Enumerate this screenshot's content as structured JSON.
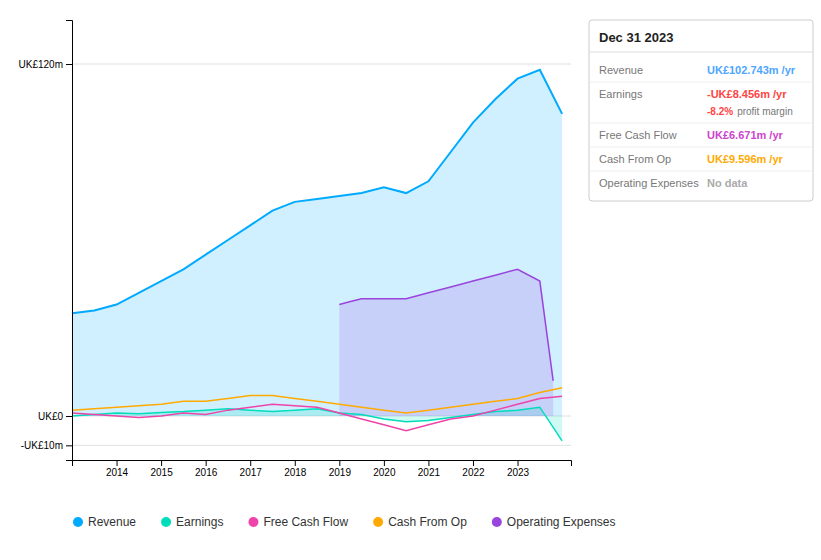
{
  "chart_data": {
    "type": "area",
    "xlim": [
      2013.0,
      2024.2
    ],
    "xticks": [
      2014,
      2015,
      2016,
      2017,
      2018,
      2019,
      2020,
      2021,
      2022,
      2023
    ],
    "ylim": [
      -15,
      135
    ],
    "yticks": [
      {
        "value": -10,
        "label": "-UK£10m"
      },
      {
        "value": 0,
        "label": "UK£0"
      },
      {
        "value": 120,
        "label": "UK£120m"
      }
    ],
    "grid": true,
    "legend": "bottom",
    "series": [
      {
        "name": "Revenue",
        "type": "area",
        "color": "#00aaff",
        "x": [
          2013.0,
          2013.5,
          2014.0,
          2014.5,
          2015.0,
          2015.5,
          2016.0,
          2016.5,
          2017.0,
          2017.5,
          2018.0,
          2018.5,
          2019.0,
          2019.5,
          2020.0,
          2020.5,
          2021.0,
          2021.5,
          2022.0,
          2022.5,
          2023.0,
          2023.5,
          2024.0
        ],
        "values": [
          35,
          36,
          38,
          42,
          46,
          50,
          55,
          60,
          65,
          70,
          73,
          74,
          75,
          76,
          78,
          76,
          80,
          90,
          100,
          108,
          115,
          118,
          103
        ]
      },
      {
        "name": "Earnings",
        "type": "area",
        "color": "#00ddbb",
        "x": [
          2013.0,
          2013.5,
          2014.0,
          2014.5,
          2015.0,
          2015.5,
          2016.0,
          2016.5,
          2017.0,
          2017.5,
          2018.0,
          2018.5,
          2019.0,
          2019.5,
          2020.0,
          2020.5,
          2021.0,
          2021.5,
          2022.0,
          2022.5,
          2023.0,
          2023.5,
          2024.0
        ],
        "values": [
          0,
          0.5,
          1,
          0.8,
          1.2,
          1.5,
          2,
          2.5,
          2,
          1.5,
          2,
          2.5,
          1,
          0.5,
          -1,
          -2,
          -1.5,
          -0.5,
          0.5,
          1.5,
          2,
          3,
          -8.5
        ]
      },
      {
        "name": "Free Cash Flow",
        "type": "line",
        "color": "#ee44aa",
        "x": [
          2013.0,
          2013.5,
          2014.0,
          2014.5,
          2015.0,
          2015.5,
          2016.0,
          2016.5,
          2017.0,
          2017.5,
          2018.0,
          2018.5,
          2019.0,
          2019.5,
          2020.0,
          2020.5,
          2021.0,
          2021.5,
          2022.0,
          2022.5,
          2023.0,
          2023.5,
          2024.0
        ],
        "values": [
          1,
          0.5,
          0,
          -0.5,
          0,
          1,
          0.5,
          2,
          3,
          4,
          3.5,
          3,
          1,
          -1,
          -3,
          -5,
          -3,
          -1,
          0,
          2,
          4,
          6,
          6.7
        ]
      },
      {
        "name": "Cash From Op",
        "type": "line",
        "color": "#ffaa00",
        "x": [
          2013.0,
          2013.5,
          2014.0,
          2014.5,
          2015.0,
          2015.5,
          2016.0,
          2016.5,
          2017.0,
          2017.5,
          2018.0,
          2018.5,
          2019.0,
          2019.5,
          2020.0,
          2020.5,
          2021.0,
          2021.5,
          2022.0,
          2022.5,
          2023.0,
          2023.5,
          2024.0
        ],
        "values": [
          2,
          2.5,
          3,
          3.5,
          4,
          5,
          5,
          6,
          7,
          7,
          6,
          5,
          4,
          3,
          2,
          1,
          2,
          3,
          4,
          5,
          6,
          8,
          9.6
        ]
      },
      {
        "name": "Operating Expenses",
        "type": "area",
        "color": "#9944dd",
        "x": [
          2019.0,
          2019.25,
          2019.5,
          2020.0,
          2020.5,
          2021.0,
          2021.5,
          2022.0,
          2022.5,
          2023.0,
          2023.5,
          2023.8
        ],
        "values": [
          38,
          39,
          40,
          40,
          40,
          42,
          44,
          46,
          48,
          50,
          46,
          12
        ]
      }
    ],
    "info_box": {
      "title": "Dec 31 2023",
      "rows": [
        {
          "label": "Revenue",
          "value": "UK£102.743m /yr",
          "color": "#4da6ff"
        },
        {
          "label": "Earnings",
          "value": "-UK£8.456m /yr",
          "color": "#ff4444",
          "extra": "-8.2%",
          "extra_color": "#ff4444",
          "extra_label": "profit margin"
        },
        {
          "label": "Free Cash Flow",
          "value": "UK£6.671m /yr",
          "color": "#cc44cc"
        },
        {
          "label": "Cash From Op",
          "value": "UK£9.596m /yr",
          "color": "#ffaa00"
        },
        {
          "label": "Operating Expenses",
          "value": "No data",
          "color": "#aaaaaa"
        }
      ]
    }
  }
}
